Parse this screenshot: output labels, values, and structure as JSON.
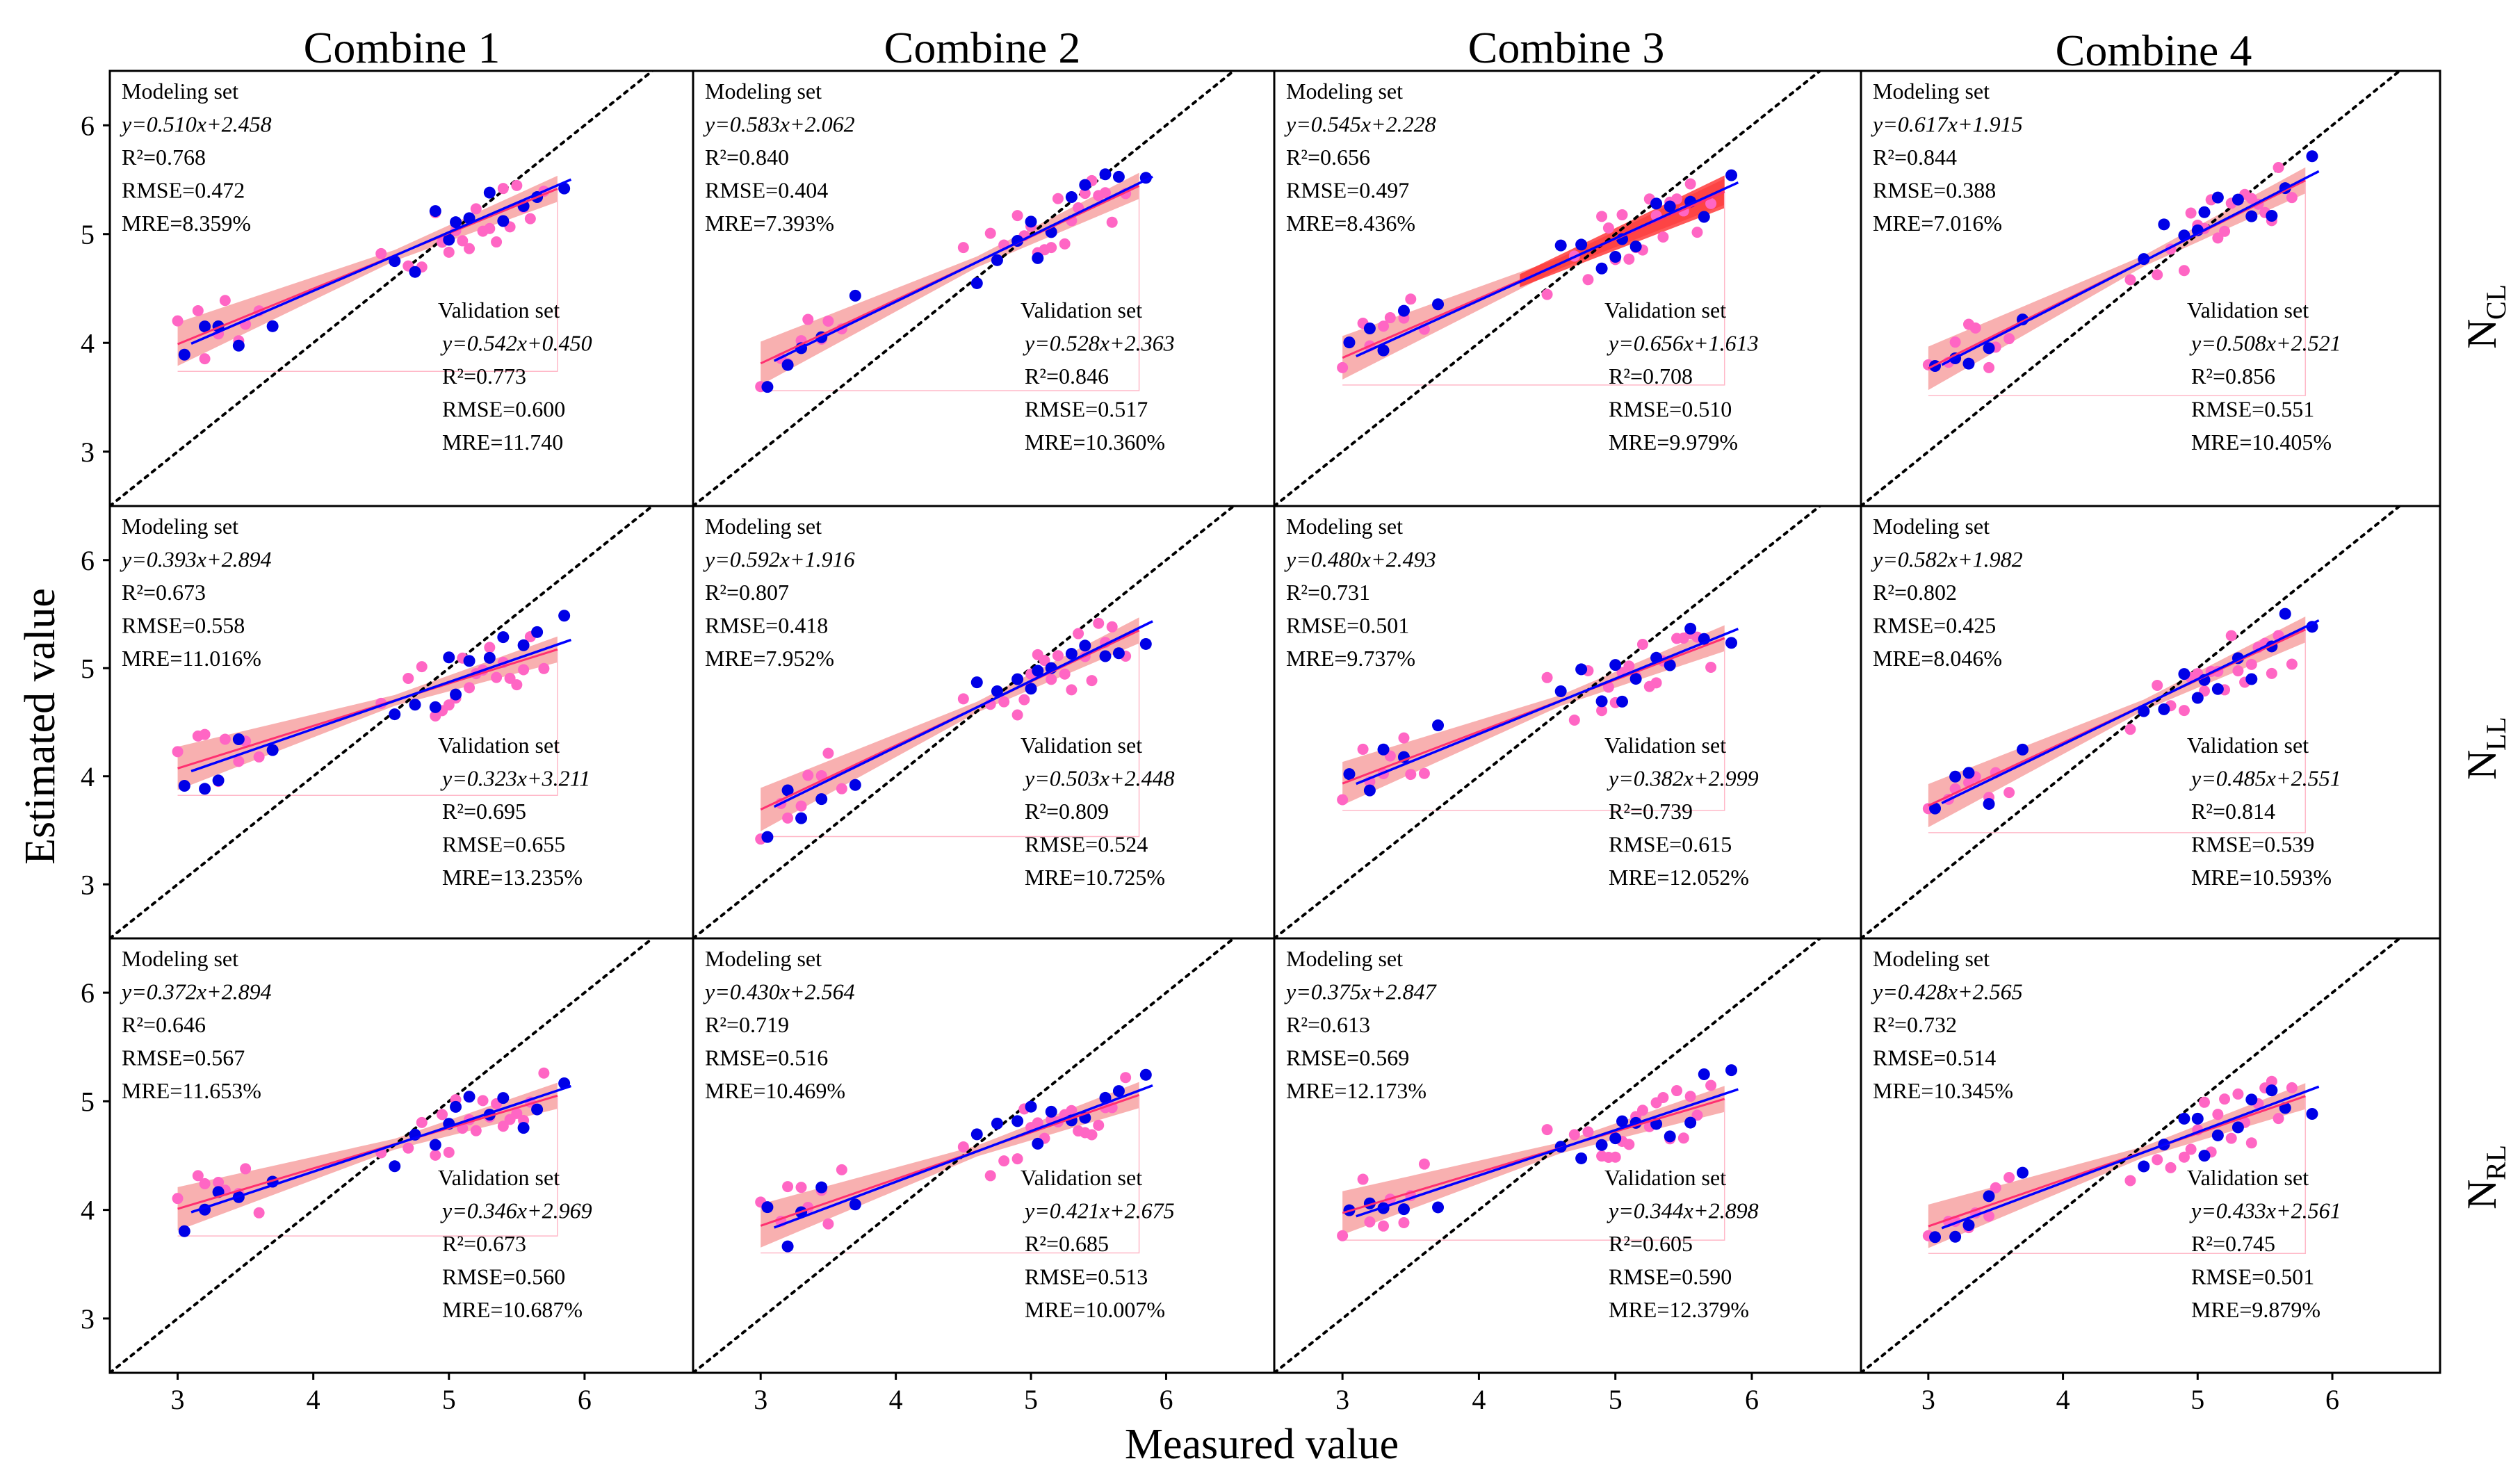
{
  "figure": {
    "xlabel": "Measured value",
    "ylabel": "Estimated value",
    "columns": [
      "Combine 1",
      "Combine 2",
      "Combine 3",
      "Combine 4"
    ],
    "rows": [
      {
        "main": "N",
        "sub": "CL"
      },
      {
        "main": "N",
        "sub": "LL"
      },
      {
        "main": "N",
        "sub": "RL"
      }
    ],
    "modeling_heading": "Modeling set",
    "validation_heading": "Validation set",
    "x_ticks": [
      "3",
      "4",
      "5",
      "6"
    ],
    "y_ticks": [
      "3",
      "4",
      "5",
      "6"
    ],
    "colors": {
      "modeling_points": "#ff66c4",
      "validation_points": "#0000e6",
      "modeling_line": "#ff3070",
      "validation_line": "#0000ff",
      "confidence_band": "#f7a2a2",
      "confidence_band_strong": "#ff2020"
    }
  },
  "chart_data": [
    {
      "row": "NCL",
      "col": "Combine 1",
      "type": "scatter",
      "xlim": [
        2.5,
        6.8
      ],
      "ylim": [
        2.5,
        6.5
      ],
      "modeling": {
        "slope": 0.51,
        "intercept": 2.458,
        "equation": "y=0.510x+2.458",
        "r2": "R²=0.768",
        "rmse": "RMSE=0.472",
        "mre": "MRE=8.359%"
      },
      "validation": {
        "slope": 0.542,
        "intercept": 0.45,
        "equation": "y=0.542x+0.450",
        "r2": "R²=0.773",
        "rmse": "RMSE=0.600",
        "mre": "MRE=11.740"
      }
    },
    {
      "row": "NCL",
      "col": "Combine 2",
      "type": "scatter",
      "xlim": [
        2.5,
        6.8
      ],
      "ylim": [
        2.5,
        6.5
      ],
      "modeling": {
        "slope": 0.583,
        "intercept": 2.062,
        "equation": "y=0.583x+2.062",
        "r2": "R²=0.840",
        "rmse": "RMSE=0.404",
        "mre": "MRE=7.393%"
      },
      "validation": {
        "slope": 0.528,
        "intercept": 2.363,
        "equation": "y=0.528x+2.363",
        "r2": "R²=0.846",
        "rmse": "RMSE=0.517",
        "mre": "MRE=10.360%"
      }
    },
    {
      "row": "NCL",
      "col": "Combine 3",
      "type": "scatter",
      "xlim": [
        2.5,
        6.8
      ],
      "ylim": [
        2.5,
        6.5
      ],
      "strong_band": true,
      "modeling": {
        "slope": 0.545,
        "intercept": 2.228,
        "equation": "y=0.545x+2.228",
        "r2": "R²=0.656",
        "rmse": "RMSE=0.497",
        "mre": "MRE=8.436%"
      },
      "validation": {
        "slope": 0.656,
        "intercept": 1.613,
        "equation": "y=0.656x+1.613",
        "r2": "R²=0.708",
        "rmse": "RMSE=0.510",
        "mre": "MRE=9.979%"
      }
    },
    {
      "row": "NCL",
      "col": "Combine 4",
      "type": "scatter",
      "xlim": [
        2.5,
        6.8
      ],
      "ylim": [
        2.5,
        6.5
      ],
      "modeling": {
        "slope": 0.617,
        "intercept": 1.915,
        "equation": "y=0.617x+1.915",
        "r2": "R²=0.844",
        "rmse": "RMSE=0.388",
        "mre": "MRE=7.016%"
      },
      "validation": {
        "slope": 0.508,
        "intercept": 2.521,
        "equation": "y=0.508x+2.521",
        "r2": "R²=0.856",
        "rmse": "RMSE=0.551",
        "mre": "MRE=10.405%"
      }
    },
    {
      "row": "NLL",
      "col": "Combine 1",
      "type": "scatter",
      "xlim": [
        2.5,
        6.8
      ],
      "ylim": [
        2.5,
        6.5
      ],
      "modeling": {
        "slope": 0.393,
        "intercept": 2.894,
        "equation": "y=0.393x+2.894",
        "r2": "R²=0.673",
        "rmse": "RMSE=0.558",
        "mre": "MRE=11.016%"
      },
      "validation": {
        "slope": 0.323,
        "intercept": 3.211,
        "equation": "y=0.323x+3.211",
        "r2": "R²=0.695",
        "rmse": "RMSE=0.655",
        "mre": "MRE=13.235%"
      }
    },
    {
      "row": "NLL",
      "col": "Combine 2",
      "type": "scatter",
      "xlim": [
        2.5,
        6.8
      ],
      "ylim": [
        2.5,
        6.5
      ],
      "modeling": {
        "slope": 0.592,
        "intercept": 1.916,
        "equation": "y=0.592x+1.916",
        "r2": "R²=0.807",
        "rmse": "RMSE=0.418",
        "mre": "MRE=7.952%"
      },
      "validation": {
        "slope": 0.503,
        "intercept": 2.448,
        "equation": "y=0.503x+2.448",
        "r2": "R²=0.809",
        "rmse": "RMSE=0.524",
        "mre": "MRE=10.725%"
      }
    },
    {
      "row": "NLL",
      "col": "Combine 3",
      "type": "scatter",
      "xlim": [
        2.5,
        6.8
      ],
      "ylim": [
        2.5,
        6.5
      ],
      "modeling": {
        "slope": 0.48,
        "intercept": 2.493,
        "equation": "y=0.480x+2.493",
        "r2": "R²=0.731",
        "rmse": "RMSE=0.501",
        "mre": "MRE=9.737%"
      },
      "validation": {
        "slope": 0.382,
        "intercept": 2.999,
        "equation": "y=0.382x+2.999",
        "r2": "R²=0.739",
        "rmse": "RMSE=0.615",
        "mre": "MRE=12.052%"
      }
    },
    {
      "row": "NLL",
      "col": "Combine 4",
      "type": "scatter",
      "xlim": [
        2.5,
        6.8
      ],
      "ylim": [
        2.5,
        6.5
      ],
      "modeling": {
        "slope": 0.582,
        "intercept": 1.982,
        "equation": "y=0.582x+1.982",
        "r2": "R²=0.802",
        "rmse": "RMSE=0.425",
        "mre": "MRE=8.046%"
      },
      "validation": {
        "slope": 0.485,
        "intercept": 2.551,
        "equation": "y=0.485x+2.551",
        "r2": "R²=0.814",
        "rmse": "RMSE=0.539",
        "mre": "MRE=10.593%"
      }
    },
    {
      "row": "NRL",
      "col": "Combine 1",
      "type": "scatter",
      "xlim": [
        2.5,
        6.8
      ],
      "ylim": [
        2.5,
        6.5
      ],
      "modeling": {
        "slope": 0.372,
        "intercept": 2.894,
        "equation": "y=0.372x+2.894",
        "r2": "R²=0.646",
        "rmse": "RMSE=0.567",
        "mre": "MRE=11.653%"
      },
      "validation": {
        "slope": 0.346,
        "intercept": 2.969,
        "equation": "y=0.346x+2.969",
        "r2": "R²=0.673",
        "rmse": "RMSE=0.560",
        "mre": "MRE=10.687%"
      }
    },
    {
      "row": "NRL",
      "col": "Combine 2",
      "type": "scatter",
      "xlim": [
        2.5,
        6.8
      ],
      "ylim": [
        2.5,
        6.5
      ],
      "modeling": {
        "slope": 0.43,
        "intercept": 2.564,
        "equation": "y=0.430x+2.564",
        "r2": "R²=0.719",
        "rmse": "RMSE=0.516",
        "mre": "MRE=10.469%"
      },
      "validation": {
        "slope": 0.421,
        "intercept": 2.675,
        "equation": "y=0.421x+2.675",
        "r2": "R²=0.685",
        "rmse": "RMSE=0.513",
        "mre": "MRE=10.007%"
      }
    },
    {
      "row": "NRL",
      "col": "Combine 3",
      "type": "scatter",
      "xlim": [
        2.5,
        6.8
      ],
      "ylim": [
        2.5,
        6.5
      ],
      "modeling": {
        "slope": 0.375,
        "intercept": 2.847,
        "equation": "y=0.375x+2.847",
        "r2": "R²=0.613",
        "rmse": "RMSE=0.569",
        "mre": "MRE=12.173%"
      },
      "validation": {
        "slope": 0.344,
        "intercept": 2.898,
        "equation": "y=0.344x+2.898",
        "r2": "R²=0.605",
        "rmse": "RMSE=0.590",
        "mre": "MRE=12.379%"
      }
    },
    {
      "row": "NRL",
      "col": "Combine 4",
      "type": "scatter",
      "xlim": [
        2.5,
        6.8
      ],
      "ylim": [
        2.5,
        6.5
      ],
      "modeling": {
        "slope": 0.428,
        "intercept": 2.565,
        "equation": "y=0.428x+2.565",
        "r2": "R²=0.732",
        "rmse": "RMSE=0.514",
        "mre": "MRE=10.345%"
      },
      "validation": {
        "slope": 0.433,
        "intercept": 2.561,
        "equation": "y=0.433x+2.561",
        "r2": "R²=0.745",
        "rmse": "RMSE=0.501",
        "mre": "MRE=9.879%"
      }
    }
  ]
}
